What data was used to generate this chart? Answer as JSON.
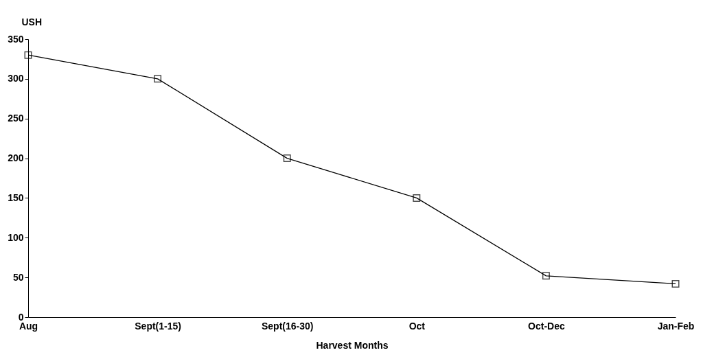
{
  "chart_data": {
    "type": "line",
    "xlabel": "Harvest Months",
    "ylabel": "USH",
    "categories": [
      "Aug",
      "Sept(1-15)",
      "Sept(16-30)",
      "Oct",
      "Oct-Dec",
      "Jan-Feb"
    ],
    "series": [
      {
        "color": "#000000",
        "values": [
          330,
          300,
          200,
          150,
          52,
          42
        ]
      }
    ],
    "ylim": [
      0,
      350
    ],
    "yticks": [
      0,
      50,
      100,
      150,
      200,
      250,
      300,
      350
    ],
    "grid": false,
    "marker": "square",
    "line_style": "solid"
  }
}
